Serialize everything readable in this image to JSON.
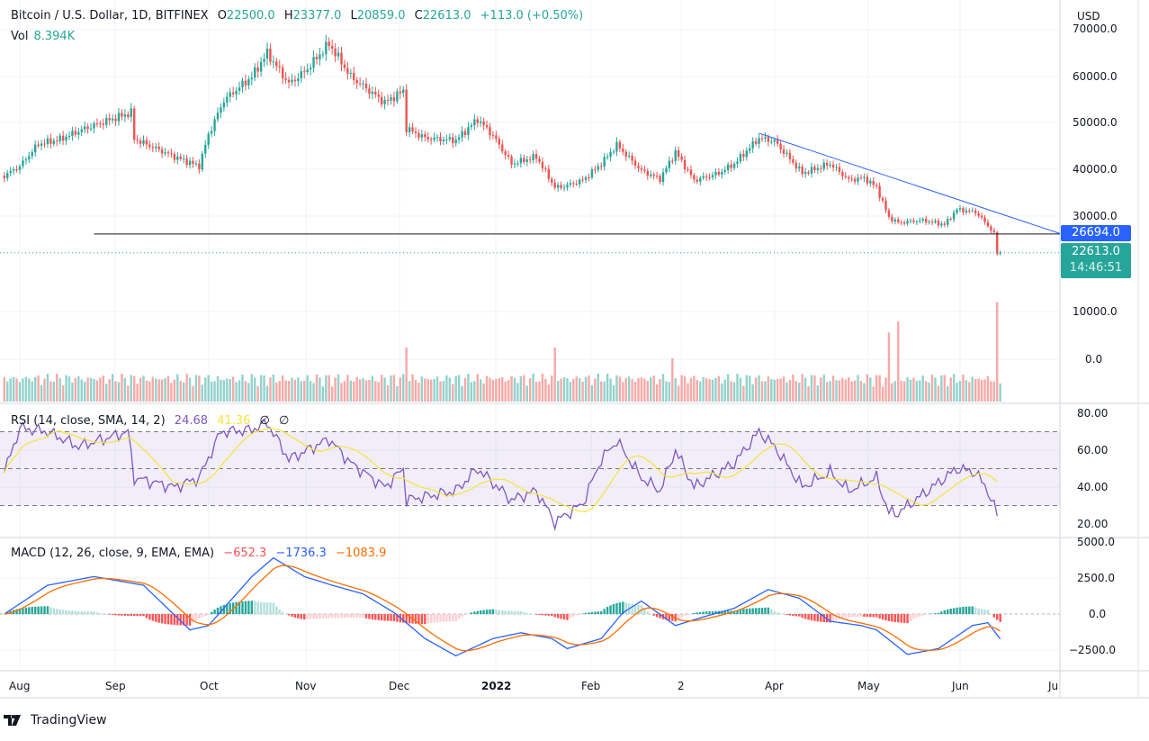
{
  "header": {
    "symbol": "Bitcoin / U.S. Dollar, 1D, BITFINEX",
    "open_label": "O",
    "open": "22500.0",
    "high_label": "H",
    "high": "23377.0",
    "low_label": "L",
    "low": "20859.0",
    "close_label": "C",
    "close": "22613.0",
    "change": "+113.0 (+0.50%)",
    "vol_label": "Vol",
    "vol": "8.394K"
  },
  "rsi_legend": {
    "title": "RSI (14, close, SMA, 14, 2)",
    "rsi": "24.68",
    "sma": "41.36",
    "v3": "∅",
    "v4": "∅"
  },
  "macd_legend": {
    "title": "MACD (12, 26, close, 9, EMA, EMA)",
    "hist": "−652.3",
    "macd": "−1736.3",
    "signal": "−1083.9"
  },
  "price_axis": {
    "currency": "USD",
    "ticks": [
      "70000.0",
      "60000.0",
      "50000.0",
      "40000.0",
      "30000.0",
      "10000.0",
      "0.0"
    ],
    "trend_label": "26694.0",
    "last_price": "22613.0",
    "countdown": "14:46:51"
  },
  "rsi_axis": {
    "ticks": [
      "80.00",
      "60.00",
      "40.00",
      "20.00"
    ]
  },
  "macd_axis": {
    "ticks": [
      "5000.0",
      "2500.0",
      "0.0",
      "−2500.0"
    ]
  },
  "time_axis": {
    "labels": [
      "Aug",
      "Sep",
      "Oct",
      "Nov",
      "Dec",
      "2022",
      "Feb",
      "2",
      "Apr",
      "May",
      "Jun",
      "Ju"
    ]
  },
  "footer": {
    "brand": "TradingView"
  },
  "colors": {
    "up": "#26a69a",
    "down": "#ef5350",
    "rsi": "#7e57c2",
    "rsi_sma": "#f5e33b",
    "macd": "#2962ff",
    "signal": "#ff6d00",
    "trend": "#2962ff"
  },
  "chart_data": {
    "type": "candlestick",
    "price_closes_approx": [
      [
        "2021-07-27",
        39000
      ],
      [
        "2021-08-01",
        41000
      ],
      [
        "2021-08-07",
        45700
      ],
      [
        "2021-08-14",
        46700
      ],
      [
        "2021-08-22",
        49000
      ],
      [
        "2021-09-06",
        52400
      ],
      [
        "2021-09-07",
        46800
      ],
      [
        "2021-09-20",
        43000
      ],
      [
        "2021-09-28",
        41000
      ],
      [
        "2021-10-01",
        47700
      ],
      [
        "2021-10-06",
        55000
      ],
      [
        "2021-10-15",
        60000
      ],
      [
        "2021-10-20",
        65000
      ],
      [
        "2021-10-27",
        58500
      ],
      [
        "2021-11-01",
        61000
      ],
      [
        "2021-11-09",
        67000
      ],
      [
        "2021-11-16",
        60000
      ],
      [
        "2021-11-20",
        58000
      ],
      [
        "2021-11-27",
        54500
      ],
      [
        "2021-12-03",
        57000
      ],
      [
        "2021-12-04",
        49000
      ],
      [
        "2021-12-10",
        47000
      ],
      [
        "2021-12-20",
        46500
      ],
      [
        "2021-12-27",
        51000
      ],
      [
        "2022-01-01",
        47500
      ],
      [
        "2022-01-07",
        41500
      ],
      [
        "2022-01-15",
        43000
      ],
      [
        "2022-01-21",
        36500
      ],
      [
        "2022-01-24",
        36700
      ],
      [
        "2022-01-30",
        38000
      ],
      [
        "2022-02-05",
        41500
      ],
      [
        "2022-02-10",
        45500
      ],
      [
        "2022-02-18",
        40000
      ],
      [
        "2022-02-24",
        38300
      ],
      [
        "2022-03-01",
        44000
      ],
      [
        "2022-03-07",
        38000
      ],
      [
        "2022-03-15",
        39500
      ],
      [
        "2022-03-20",
        41500
      ],
      [
        "2022-03-28",
        47000
      ],
      [
        "2022-04-02",
        46300
      ],
      [
        "2022-04-11",
        39500
      ],
      [
        "2022-04-20",
        41500
      ],
      [
        "2022-04-26",
        38100
      ],
      [
        "2022-05-01",
        38500
      ],
      [
        "2022-05-05",
        36500
      ],
      [
        "2022-05-09",
        30100
      ],
      [
        "2022-05-12",
        29000
      ],
      [
        "2022-05-20",
        29500
      ],
      [
        "2022-05-27",
        28600
      ],
      [
        "2022-05-31",
        31800
      ],
      [
        "2022-06-06",
        31300
      ],
      [
        "2022-06-10",
        28400
      ],
      [
        "2022-06-12",
        26600
      ],
      [
        "2022-06-13",
        22500
      ],
      [
        "2022-06-14",
        22613
      ]
    ],
    "volume_spikes_k": [
      [
        "2021-12-04",
        25
      ],
      [
        "2022-01-21",
        25
      ],
      [
        "2022-02-28",
        20
      ],
      [
        "2022-05-09",
        32
      ],
      [
        "2022-05-12",
        37
      ],
      [
        "2022-06-13",
        46
      ],
      [
        "2022-06-14",
        8.394
      ]
    ],
    "horizontal_line": 26600,
    "trend_line": [
      [
        "2022-03-28",
        48000
      ],
      [
        "2022-07-01",
        26694
      ]
    ],
    "rsi_approx": [
      [
        "2021-07-27",
        48
      ],
      [
        "2021-08-01",
        72
      ],
      [
        "2021-08-10",
        70
      ],
      [
        "2021-08-20",
        62
      ],
      [
        "2021-09-05",
        70
      ],
      [
        "2021-09-07",
        45
      ],
      [
        "2021-09-20",
        40
      ],
      [
        "2021-09-28",
        45
      ],
      [
        "2021-10-05",
        70
      ],
      [
        "2021-10-15",
        71
      ],
      [
        "2021-10-20",
        75
      ],
      [
        "2021-10-27",
        55
      ],
      [
        "2021-11-09",
        66
      ],
      [
        "2021-11-16",
        53
      ],
      [
        "2021-11-27",
        40
      ],
      [
        "2021-12-03",
        50
      ],
      [
        "2021-12-04",
        33
      ],
      [
        "2021-12-20",
        38
      ],
      [
        "2021-12-27",
        50
      ],
      [
        "2022-01-07",
        33
      ],
      [
        "2022-01-15",
        38
      ],
      [
        "2022-01-21",
        21
      ],
      [
        "2022-01-30",
        31
      ],
      [
        "2022-02-05",
        55
      ],
      [
        "2022-02-10",
        65
      ],
      [
        "2022-02-18",
        45
      ],
      [
        "2022-02-24",
        38
      ],
      [
        "2022-03-01",
        60
      ],
      [
        "2022-03-07",
        40
      ],
      [
        "2022-03-20",
        53
      ],
      [
        "2022-03-28",
        70
      ],
      [
        "2022-04-02",
        62
      ],
      [
        "2022-04-11",
        40
      ],
      [
        "2022-04-20",
        48
      ],
      [
        "2022-04-26",
        38
      ],
      [
        "2022-05-05",
        45
      ],
      [
        "2022-05-09",
        26
      ],
      [
        "2022-05-12",
        26
      ],
      [
        "2022-05-20",
        36
      ],
      [
        "2022-05-31",
        50
      ],
      [
        "2022-06-06",
        48
      ],
      [
        "2022-06-10",
        38
      ],
      [
        "2022-06-13",
        25
      ]
    ],
    "rsi_bands": [
      70,
      50,
      30
    ],
    "macd_approx": [
      [
        "2021-07-27",
        0
      ],
      [
        "2021-08-10",
        2000
      ],
      [
        "2021-08-25",
        2600
      ],
      [
        "2021-09-10",
        2000
      ],
      [
        "2021-09-25",
        -1100
      ],
      [
        "2021-10-01",
        -800
      ],
      [
        "2021-10-15",
        2600
      ],
      [
        "2021-10-22",
        3900
      ],
      [
        "2021-11-01",
        2600
      ],
      [
        "2021-11-10",
        2000
      ],
      [
        "2021-11-20",
        1400
      ],
      [
        "2021-11-30",
        100
      ],
      [
        "2021-12-10",
        -1700
      ],
      [
        "2021-12-20",
        -2900
      ],
      [
        "2022-01-01",
        -1700
      ],
      [
        "2022-01-10",
        -1300
      ],
      [
        "2022-01-20",
        -1700
      ],
      [
        "2022-01-25",
        -2400
      ],
      [
        "2022-02-05",
        -1700
      ],
      [
        "2022-02-12",
        100
      ],
      [
        "2022-02-18",
        900
      ],
      [
        "2022-03-01",
        -800
      ],
      [
        "2022-03-10",
        -200
      ],
      [
        "2022-03-20",
        400
      ],
      [
        "2022-03-31",
        1700
      ],
      [
        "2022-04-10",
        1100
      ],
      [
        "2022-04-20",
        -500
      ],
      [
        "2022-04-30",
        -800
      ],
      [
        "2022-05-05",
        -1100
      ],
      [
        "2022-05-15",
        -2800
      ],
      [
        "2022-05-25",
        -2400
      ],
      [
        "2022-06-05",
        -800
      ],
      [
        "2022-06-10",
        -600
      ],
      [
        "2022-06-14",
        -1736
      ]
    ],
    "price_ylim": [
      0,
      70000
    ],
    "rsi_ylim": [
      20,
      80
    ],
    "macd_ylim": [
      -2500,
      5000
    ]
  }
}
